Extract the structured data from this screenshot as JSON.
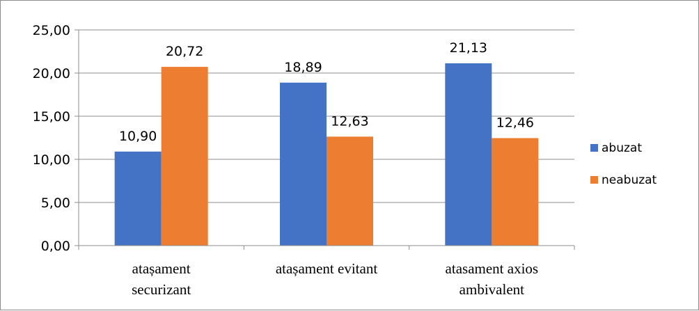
{
  "chart_data": {
    "type": "bar",
    "categories": [
      [
        "atașament",
        "securizant"
      ],
      [
        "atașament evitant"
      ],
      [
        "atasament axios",
        "ambivalent"
      ]
    ],
    "series": [
      {
        "name": "abuzat",
        "color": "#4472C4",
        "values": [
          10.9,
          18.89,
          21.13
        ],
        "labels": [
          "10,90",
          "18,89",
          "21,13"
        ]
      },
      {
        "name": "neabuzat",
        "color": "#ED7D31",
        "values": [
          20.72,
          12.63,
          12.46
        ],
        "labels": [
          "20,72",
          "12,63",
          "12,46"
        ]
      }
    ],
    "ylim": [
      0,
      25
    ],
    "yticks": [
      0,
      5,
      10,
      15,
      20,
      25
    ],
    "ytick_labels": [
      "0,00",
      "5,00",
      "10,00",
      "15,00",
      "20,00",
      "25,00"
    ],
    "grid": true,
    "gridline_color": "#8c8c8c",
    "legend_position": "right"
  }
}
